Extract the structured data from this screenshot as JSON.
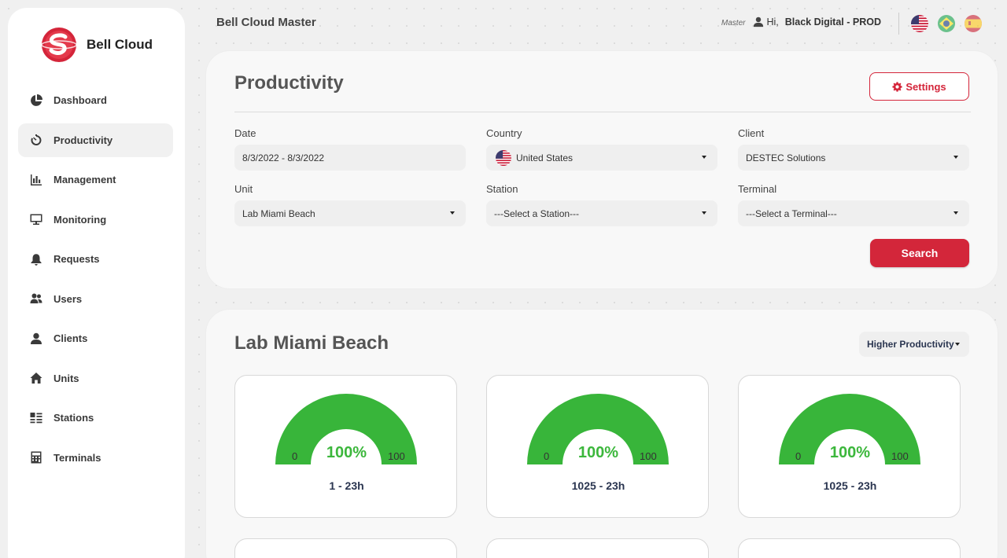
{
  "app": {
    "title": "Bell Cloud Master"
  },
  "brand": {
    "name": "Bell Cloud",
    "logo_icon": "bell-cloud-logo-icon",
    "color": "#d4253a"
  },
  "sidebar": {
    "items": [
      {
        "label": "Dashboard",
        "icon": "pie-chart-icon",
        "active": false
      },
      {
        "label": "Productivity",
        "icon": "stopwatch-icon",
        "active": true
      },
      {
        "label": "Management",
        "icon": "bar-chart-icon",
        "active": false
      },
      {
        "label": "Monitoring",
        "icon": "monitor-icon",
        "active": false
      },
      {
        "label": "Requests",
        "icon": "bell-icon",
        "active": false
      },
      {
        "label": "Users",
        "icon": "users-icon",
        "active": false
      },
      {
        "label": "Clients",
        "icon": "user-icon",
        "active": false
      },
      {
        "label": "Units",
        "icon": "home-icon",
        "active": false
      },
      {
        "label": "Stations",
        "icon": "list-icon",
        "active": false
      },
      {
        "label": "Terminals",
        "icon": "calculator-icon",
        "active": false
      }
    ]
  },
  "topbar": {
    "role": "Master",
    "greeting": "Hi,",
    "user_name": "Black Digital - PROD",
    "languages": [
      "us-flag-icon",
      "brazil-flag-icon",
      "spain-flag-icon"
    ]
  },
  "filters": {
    "page_title": "Productivity",
    "settings_label": "Settings",
    "date": {
      "label": "Date",
      "value": "8/3/2022 - 8/3/2022"
    },
    "country": {
      "label": "Country",
      "value": "United States"
    },
    "client": {
      "label": "Client",
      "value": "DESTEC Solutions"
    },
    "unit": {
      "label": "Unit",
      "value": "Lab Miami Beach"
    },
    "station": {
      "label": "Station",
      "value": "---Select a Station---"
    },
    "terminal": {
      "label": "Terminal",
      "value": "---Select a Terminal---"
    },
    "search_label": "Search"
  },
  "unit_panel": {
    "title": "Lab Miami Beach",
    "sort_value": "Higher Productivity",
    "gauge_color": "#38b53a",
    "gauges": [
      {
        "min": "0",
        "max": "100",
        "value": 100,
        "value_label": "100%",
        "label": "1 - 23h"
      },
      {
        "min": "0",
        "max": "100",
        "value": 100,
        "value_label": "100%",
        "label": "1025 - 23h"
      },
      {
        "min": "0",
        "max": "100",
        "value": 100,
        "value_label": "100%",
        "label": "1025 - 23h"
      }
    ]
  }
}
